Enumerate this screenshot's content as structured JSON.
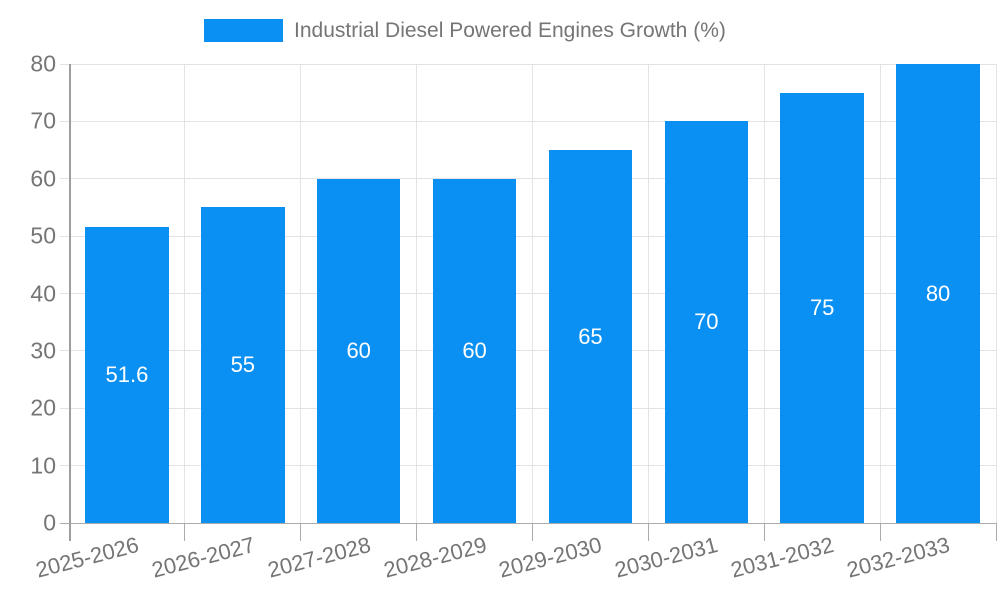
{
  "chart_data": {
    "type": "bar",
    "title": "Industrial Diesel Powered Engines Growth (%)",
    "legend": {
      "label": "Industrial Diesel Powered Engines Growth (%)",
      "position": "top"
    },
    "categories": [
      "2025-2026",
      "2026-2027",
      "2027-2028",
      "2028-2029",
      "2029-2030",
      "2030-2031",
      "2031-2032",
      "2032-2033"
    ],
    "series": [
      {
        "name": "Industrial Diesel Powered Engines Growth (%)",
        "values": [
          51.6,
          55,
          60,
          60,
          65,
          70,
          75,
          80
        ],
        "value_labels": [
          "51.6",
          "55",
          "60",
          "60",
          "65",
          "70",
          "75",
          "80"
        ]
      }
    ],
    "xlabel": "",
    "ylabel": "",
    "ylim": [
      0,
      80
    ],
    "ytick_step": 10,
    "ytick_labels": [
      "0",
      "10",
      "20",
      "30",
      "40",
      "50",
      "60",
      "70",
      "80"
    ],
    "grid": true,
    "value_labels_inside_bars": true,
    "xlabel_rotation_deg": -14.5,
    "colors": {
      "bar_fill": "#0A8FF2",
      "value_label_text": "#ffffff",
      "axis_line": "#9e9e9e",
      "baseline": "#ababab",
      "gridline": "#e3e3e3",
      "tick_text": "#757575",
      "legend_text": "#757575",
      "background": "#ffffff"
    }
  }
}
